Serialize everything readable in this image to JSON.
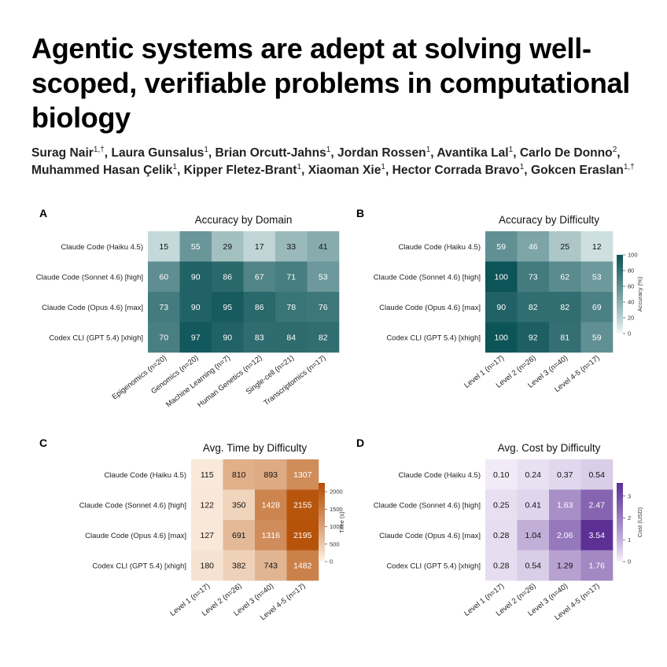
{
  "title": "Agentic systems are adept at solving well-scoped, verifiable problems in computational biology",
  "authors": [
    {
      "name": "Surag Nair",
      "aff": "1,†",
      "sep": ", "
    },
    {
      "name": "Laura Gunsalus",
      "aff": "1",
      "sep": ", "
    },
    {
      "name": "Brian Orcutt-Jahns",
      "aff": "1",
      "sep": ", "
    },
    {
      "name": "Jordan Rossen",
      "aff": "1",
      "sep": ", "
    },
    {
      "name": "Avantika Lal",
      "aff": "1",
      "sep": ", "
    },
    {
      "name": "Carlo De Donno",
      "aff": "2",
      "sep": ", "
    },
    {
      "name": "Muhammed Hasan Çelik",
      "aff": "1",
      "sep": ", "
    },
    {
      "name": "Kipper Fletez-Brant",
      "aff": "1",
      "sep": ", "
    },
    {
      "name": "Xiaoman Xie",
      "aff": "1",
      "sep": ", "
    },
    {
      "name": "Hector Corrada Bravo",
      "aff": "1",
      "sep": ", "
    },
    {
      "name": "Gokcen Eraslan",
      "aff": "1,†",
      "sep": ""
    }
  ],
  "chart_data": [
    {
      "panel": "A",
      "type": "heatmap",
      "title": "Accuracy by Domain",
      "rows": [
        "Claude Code (Haiku 4.5)",
        "Claude Code (Sonnet 4.6) [high]",
        "Claude Code (Opus 4.6) [max]",
        "Codex CLI (GPT 5.4) [xhigh]"
      ],
      "columns": [
        "Epigenomics (n=20)",
        "Genomics (n=20)",
        "Machine Learning (n=7)",
        "Human Genetics (n=12)",
        "Single-cell (n=21)",
        "Transcriptomics (n=17)"
      ],
      "values": [
        [
          15,
          55,
          29,
          17,
          33,
          41
        ],
        [
          60,
          90,
          86,
          67,
          71,
          53
        ],
        [
          73,
          90,
          95,
          86,
          78,
          76
        ],
        [
          70,
          97,
          90,
          83,
          84,
          82
        ]
      ],
      "vmin": 0,
      "vmax": 100,
      "palette": [
        "#f4fafa",
        "#0d5458"
      ]
    },
    {
      "panel": "B",
      "type": "heatmap",
      "title": "Accuracy by Difficulty",
      "rows": [
        "Claude Code (Haiku 4.5)",
        "Claude Code (Sonnet 4.6) [high]",
        "Claude Code (Opus 4.6) [max]",
        "Codex CLI (GPT 5.4) [xhigh]"
      ],
      "columns": [
        "Level 1 (n=17)",
        "Level 2 (n=26)",
        "Level 3 (n=40)",
        "Level 4-5 (n=17)"
      ],
      "values": [
        [
          59,
          46,
          25,
          12
        ],
        [
          100,
          73,
          62,
          53
        ],
        [
          90,
          82,
          82,
          69
        ],
        [
          100,
          92,
          81,
          59
        ]
      ],
      "vmin": 0,
      "vmax": 100,
      "palette": [
        "#f4fafa",
        "#0d5458"
      ],
      "colorbar": {
        "label": "Accuracy (%)",
        "ticks": [
          0,
          20,
          40,
          60,
          80,
          100
        ]
      }
    },
    {
      "panel": "C",
      "type": "heatmap",
      "title": "Avg. Time by Difficulty",
      "rows": [
        "Claude Code (Haiku 4.5)",
        "Claude Code (Sonnet 4.6) [high]",
        "Claude Code (Opus 4.6) [max]",
        "Codex CLI (GPT 5.4) [xhigh]"
      ],
      "columns": [
        "Level 1 (n=17)",
        "Level 2 (n=26)",
        "Level 3 (n=40)",
        "Level 4-5 (n=17)"
      ],
      "values": [
        [
          115,
          810,
          893,
          1307
        ],
        [
          122,
          350,
          1428,
          2155
        ],
        [
          127,
          691,
          1316,
          2195
        ],
        [
          180,
          382,
          743,
          1482
        ]
      ],
      "vmin": 0,
      "vmax": 2250,
      "palette": [
        "#fff6ec",
        "#b54f05"
      ],
      "colorbar": {
        "label": "Time (s)",
        "ticks": [
          0,
          500,
          1000,
          1500,
          2000
        ]
      }
    },
    {
      "panel": "D",
      "type": "heatmap",
      "title": "Avg. Cost by Difficulty",
      "rows": [
        "Claude Code (Haiku 4.5)",
        "Claude Code (Sonnet 4.6) [high]",
        "Claude Code (Opus 4.6) [max]",
        "Codex CLI (GPT 5.4) [xhigh]"
      ],
      "columns": [
        "Level 1 (n=17)",
        "Level 2 (n=26)",
        "Level 3 (n=40)",
        "Level 4-5 (n=17)"
      ],
      "values": [
        [
          "0.10",
          "0.24",
          "0.37",
          "0.54"
        ],
        [
          "0.25",
          "0.41",
          "1.63",
          "2.47"
        ],
        [
          "0.28",
          "1.04",
          "2.06",
          "3.54"
        ],
        [
          "0.28",
          "0.54",
          "1.29",
          "1.76"
        ]
      ],
      "vmin": 0,
      "vmax": 3.6,
      "palette": [
        "#f8f5fc",
        "#5b2d95"
      ],
      "colorbar": {
        "label": "Cost (USD)",
        "ticks": [
          0,
          1,
          2,
          3
        ]
      }
    }
  ]
}
